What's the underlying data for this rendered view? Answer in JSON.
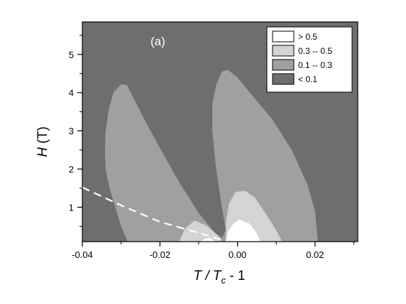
{
  "chart_data": {
    "type": "heatmap",
    "panel_label": "(a)",
    "xlabel": {
      "main": "T / T",
      "sub": "c",
      "tail": " - 1"
    },
    "ylabel": {
      "main": "H",
      "tail": " (T)"
    },
    "xlim": [
      -0.04,
      0.031
    ],
    "ylim": [
      0.1,
      5.85
    ],
    "xticks": [
      {
        "value": -0.04,
        "label": "-0.04"
      },
      {
        "value": -0.02,
        "label": "-0.02"
      },
      {
        "value": 0.0,
        "label": "0.00"
      },
      {
        "value": 0.02,
        "label": "0.02"
      }
    ],
    "yticks": [
      {
        "value": 1,
        "label": "1"
      },
      {
        "value": 2,
        "label": "2"
      },
      {
        "value": 3,
        "label": "3"
      },
      {
        "value": 4,
        "label": "4"
      },
      {
        "value": 5,
        "label": "5"
      }
    ],
    "background": {
      "label": "< 0.1",
      "color": "#6e6e6e"
    },
    "legend": [
      {
        "label": "> 0.5",
        "color": "#ffffff"
      },
      {
        "label": "0.3  --  0.5",
        "color": "#d4d4d4"
      },
      {
        "label": "0.1  --  0.3",
        "color": "#a0a0a0"
      },
      {
        "label": "< 0.1",
        "color": "#6e6e6e"
      }
    ],
    "regions": [
      {
        "level": "0.1 -- 0.3",
        "color": "#a0a0a0",
        "boundary": [
          [
            -0.0283,
            0.1
          ],
          [
            -0.03,
            0.5
          ],
          [
            -0.0315,
            1.0
          ],
          [
            -0.033,
            1.5
          ],
          [
            -0.034,
            2.0
          ],
          [
            -0.0342,
            2.5
          ],
          [
            -0.034,
            3.0
          ],
          [
            -0.0333,
            3.5
          ],
          [
            -0.032,
            4.0
          ],
          [
            -0.03,
            4.22
          ],
          [
            -0.0285,
            4.2
          ],
          [
            -0.027,
            3.9
          ],
          [
            -0.024,
            3.3
          ],
          [
            -0.02,
            2.55
          ],
          [
            -0.015,
            1.65
          ],
          [
            -0.01,
            0.85
          ],
          [
            -0.006,
            0.35
          ],
          [
            -0.004,
            0.2
          ],
          [
            -0.003,
            0.4
          ],
          [
            -0.004,
            1.0
          ],
          [
            -0.0055,
            2.0
          ],
          [
            -0.0065,
            3.0
          ],
          [
            -0.0065,
            3.7
          ],
          [
            -0.0055,
            4.2
          ],
          [
            -0.004,
            4.55
          ],
          [
            -0.0025,
            4.6
          ],
          [
            0.0,
            4.4
          ],
          [
            0.004,
            3.9
          ],
          [
            0.009,
            3.3
          ],
          [
            0.014,
            2.5
          ],
          [
            0.018,
            1.6
          ],
          [
            0.02,
            0.9
          ],
          [
            0.0207,
            0.1
          ]
        ]
      },
      {
        "level": "0.3 -- 0.5",
        "color": "#d4d4d4",
        "boundary": [
          [
            -0.015,
            0.1
          ],
          [
            -0.0135,
            0.45
          ],
          [
            -0.011,
            0.65
          ],
          [
            -0.008,
            0.52
          ],
          [
            -0.005,
            0.25
          ],
          [
            -0.0042,
            0.1
          ]
        ]
      },
      {
        "level": "0.3 -- 0.5",
        "color": "#d4d4d4",
        "boundary": [
          [
            -0.003,
            0.1
          ],
          [
            -0.003,
            0.6
          ],
          [
            -0.0022,
            1.1
          ],
          [
            -0.0005,
            1.4
          ],
          [
            0.002,
            1.43
          ],
          [
            0.0045,
            1.25
          ],
          [
            0.0075,
            0.8
          ],
          [
            0.01,
            0.4
          ],
          [
            0.0115,
            0.1
          ]
        ]
      },
      {
        "level": "> 0.5",
        "color": "#ffffff",
        "boundary": [
          [
            -0.0095,
            0.1
          ],
          [
            -0.0085,
            0.17
          ],
          [
            -0.007,
            0.2
          ],
          [
            -0.0058,
            0.1
          ]
        ]
      },
      {
        "level": "> 0.5",
        "color": "#ffffff",
        "boundary": [
          [
            -0.003,
            0.1
          ],
          [
            -0.0025,
            0.35
          ],
          [
            -0.001,
            0.58
          ],
          [
            0.0005,
            0.68
          ],
          [
            0.003,
            0.58
          ],
          [
            0.0048,
            0.35
          ],
          [
            0.006,
            0.1
          ]
        ]
      }
    ],
    "dashed_line": {
      "color": "#ffffff",
      "points": [
        [
          -0.04,
          1.52
        ],
        [
          -0.03,
          1.05
        ],
        [
          -0.02,
          0.62
        ],
        [
          -0.01,
          0.33
        ],
        [
          -0.003,
          0.12
        ]
      ]
    }
  }
}
